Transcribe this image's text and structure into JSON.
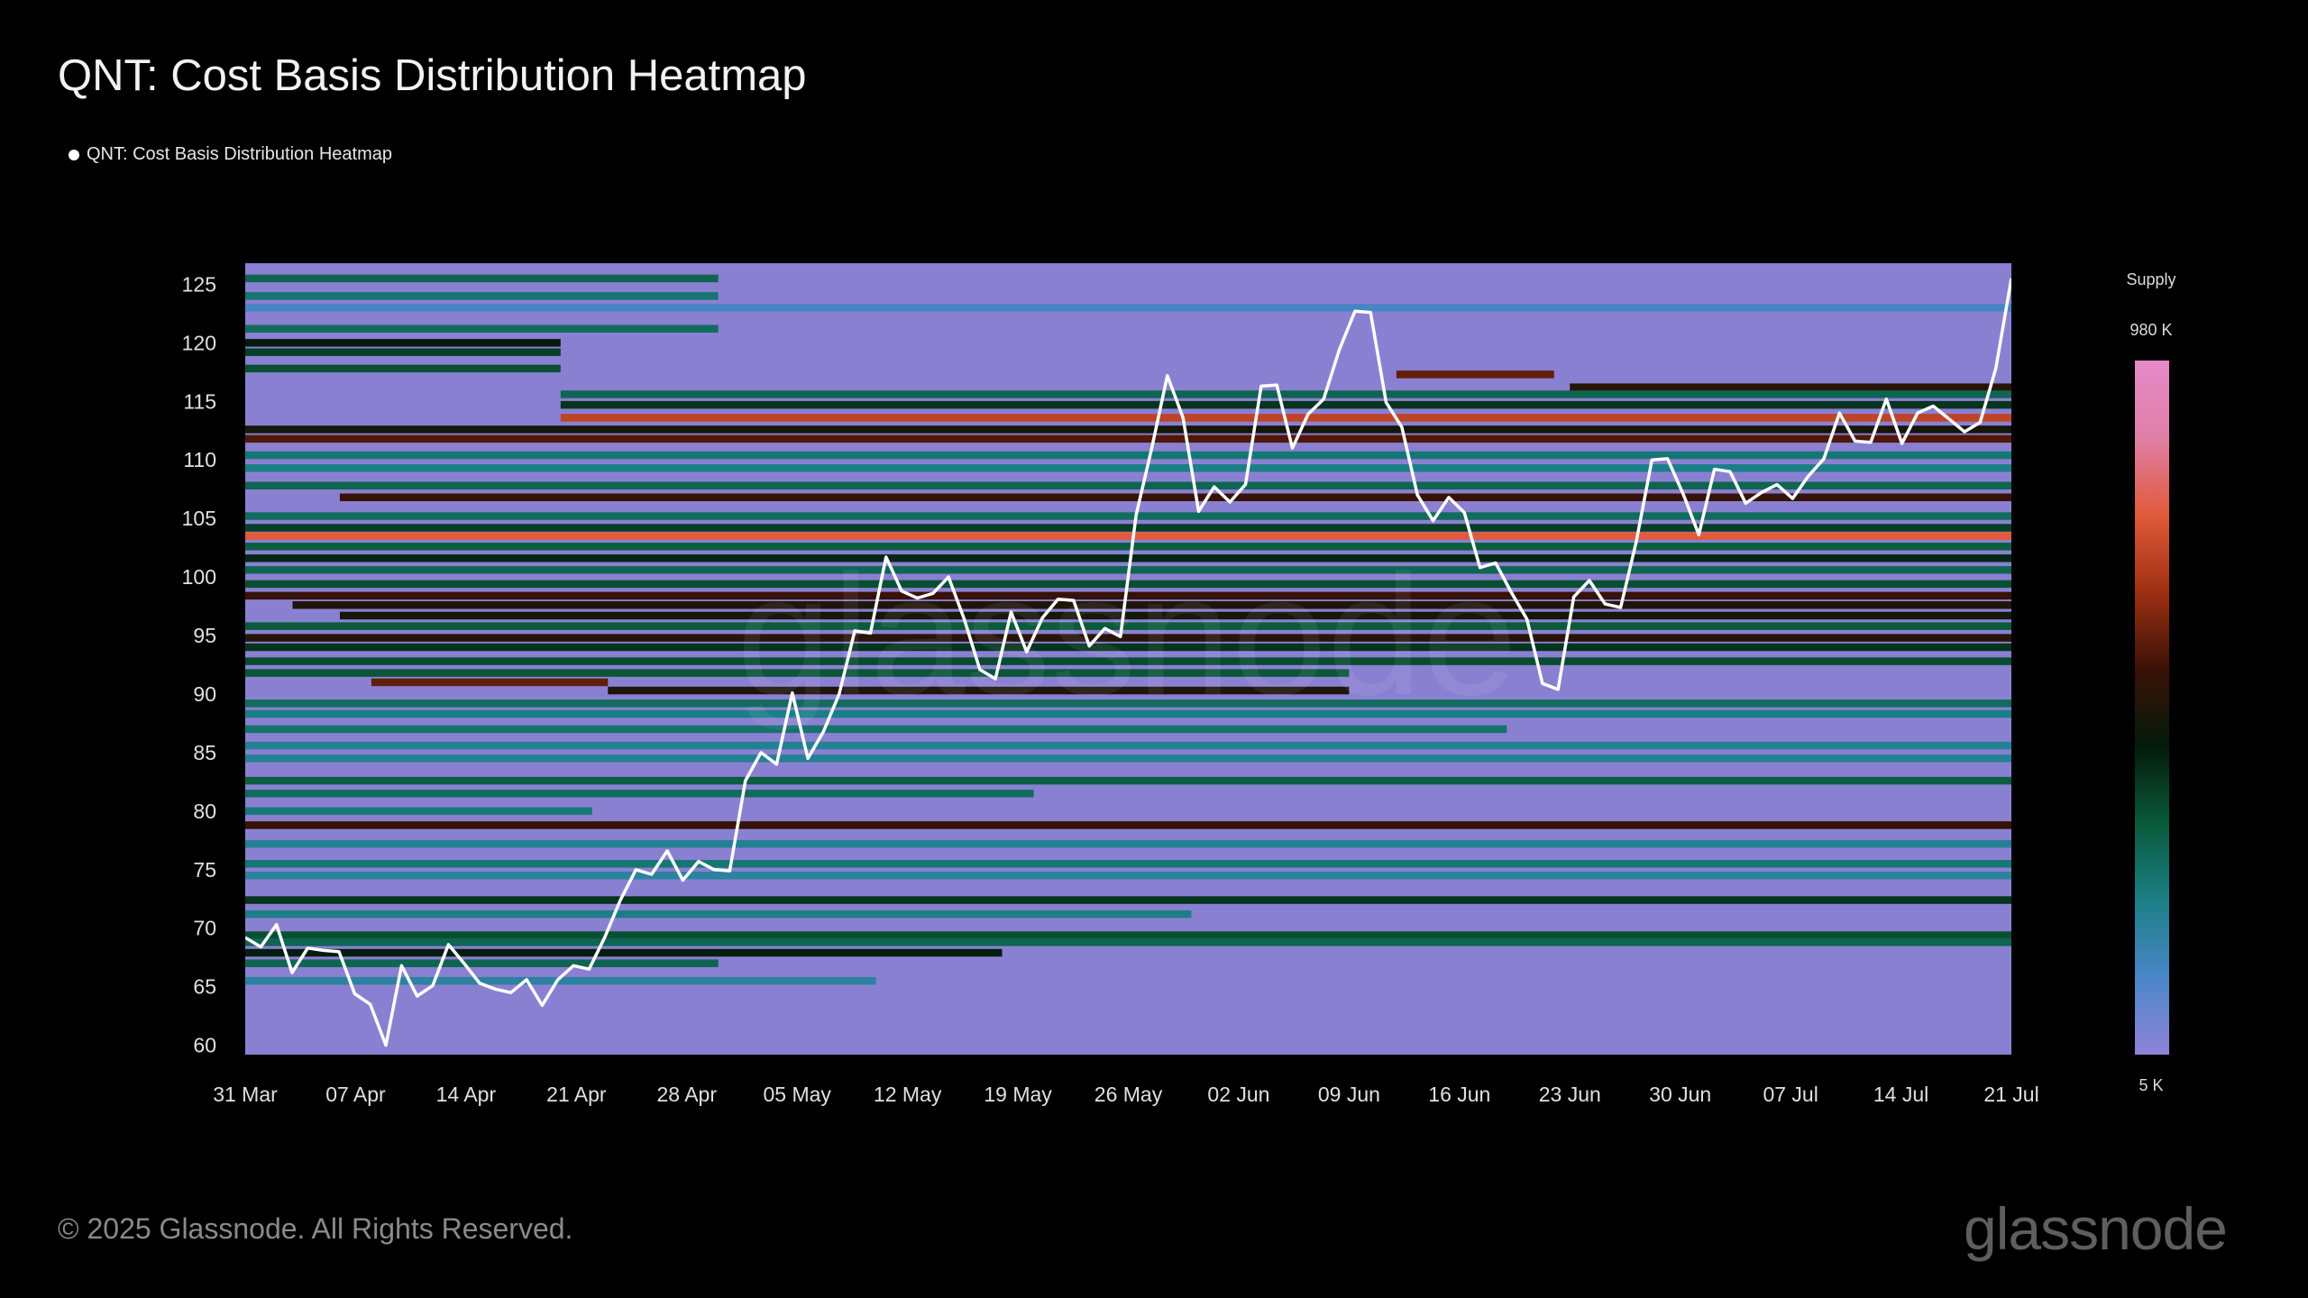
{
  "header": {
    "title": "QNT: Cost Basis Distribution Heatmap",
    "legend_label": "QNT: Cost Basis Distribution Heatmap"
  },
  "footer": {
    "copyright": "© 2025 Glassnode. All Rights Reserved.",
    "brand": "glassnode",
    "watermark": "glassnode"
  },
  "colorbar": {
    "title": "Supply",
    "max_label": "980 K",
    "min_label": "5 K",
    "stops": [
      "#8f84d8",
      "#4a86c8",
      "#1a7f86",
      "#0a5a3a",
      "#031a0c",
      "#3a1206",
      "#9e2f12",
      "#e05a3a",
      "#e07fa6",
      "#e48ac8"
    ]
  },
  "colors": {
    "background": "#000000",
    "base_cell": "#8a80d2",
    "price_line": "#ffffff"
  },
  "chart_data": {
    "type": "heatmap",
    "title": "QNT: Cost Basis Distribution Heatmap",
    "xlabel": "",
    "ylabel": "",
    "x_range_days": [
      0,
      112
    ],
    "ylim": [
      59.2,
      126.8
    ],
    "x_ticks": [
      {
        "day": 0,
        "label": "31 Mar"
      },
      {
        "day": 7,
        "label": "07 Apr"
      },
      {
        "day": 14,
        "label": "14 Apr"
      },
      {
        "day": 21,
        "label": "21 Apr"
      },
      {
        "day": 28,
        "label": "28 Apr"
      },
      {
        "day": 35,
        "label": "05 May"
      },
      {
        "day": 42,
        "label": "12 May"
      },
      {
        "day": 49,
        "label": "19 May"
      },
      {
        "day": 56,
        "label": "26 May"
      },
      {
        "day": 63,
        "label": "02 Jun"
      },
      {
        "day": 70,
        "label": "09 Jun"
      },
      {
        "day": 77,
        "label": "16 Jun"
      },
      {
        "day": 84,
        "label": "23 Jun"
      },
      {
        "day": 91,
        "label": "30 Jun"
      },
      {
        "day": 98,
        "label": "07 Jul"
      },
      {
        "day": 105,
        "label": "14 Jul"
      },
      {
        "day": 112,
        "label": "21 Jul"
      }
    ],
    "y_ticks": [
      60,
      65,
      70,
      75,
      80,
      85,
      90,
      95,
      100,
      105,
      110,
      115,
      120,
      125
    ],
    "price_series": {
      "name": "QNT price",
      "values": [
        69.2,
        68.4,
        70.3,
        66.2,
        68.3,
        68.1,
        68.0,
        64.4,
        63.5,
        60.0,
        66.8,
        64.2,
        65.1,
        68.6,
        67.0,
        65.3,
        64.8,
        64.5,
        65.6,
        63.4,
        65.6,
        66.8,
        66.5,
        69.2,
        72.4,
        75.0,
        74.6,
        76.6,
        74.1,
        75.7,
        75.0,
        74.9,
        82.6,
        85.0,
        84.0,
        90.1,
        84.5,
        86.8,
        90.0,
        95.4,
        95.2,
        101.7,
        98.8,
        98.2,
        98.6,
        100.0,
        96.4,
        92.1,
        91.3,
        97.0,
        93.6,
        96.5,
        98.1,
        98.0,
        94.1,
        95.6,
        94.9,
        105.3,
        111.0,
        117.2,
        113.6,
        105.6,
        107.7,
        106.4,
        107.9,
        116.3,
        116.4,
        111.0,
        113.9,
        115.2,
        119.4,
        122.7,
        122.6,
        114.9,
        112.8,
        107.0,
        104.8,
        106.8,
        105.5,
        100.8,
        101.2,
        98.7,
        96.4,
        90.9,
        90.4,
        98.3,
        99.7,
        97.7,
        97.4,
        103.0,
        110.0,
        110.1,
        107.1,
        103.6,
        109.2,
        109.0,
        106.3,
        107.2,
        107.9,
        106.7,
        108.6,
        110.1,
        114.0,
        111.6,
        111.5,
        115.2,
        111.4,
        114.0,
        114.6,
        113.5,
        112.4,
        113.2,
        117.8,
        125.5
      ]
    },
    "heat_bands": [
      {
        "price": 125.5,
        "x0": 0,
        "x1": 30,
        "level": 0.3
      },
      {
        "price": 124.0,
        "x0": 0,
        "x1": 30,
        "level": 0.25
      },
      {
        "price": 123.0,
        "x0": 0,
        "x1": 112,
        "level": 0.12
      },
      {
        "price": 121.2,
        "x0": 0,
        "x1": 30,
        "level": 0.28
      },
      {
        "price": 120.0,
        "x0": 0,
        "x1": 20,
        "level": 0.45
      },
      {
        "price": 119.2,
        "x0": 0,
        "x1": 20,
        "level": 0.38
      },
      {
        "price": 117.8,
        "x0": 0,
        "x1": 20,
        "level": 0.35
      },
      {
        "price": 117.3,
        "x0": 73,
        "x1": 83,
        "level": 0.6
      },
      {
        "price": 116.2,
        "x0": 84,
        "x1": 112,
        "level": 0.52
      },
      {
        "price": 115.6,
        "x0": 20,
        "x1": 112,
        "level": 0.3
      },
      {
        "price": 114.7,
        "x0": 20,
        "x1": 112,
        "level": 0.4
      },
      {
        "price": 113.6,
        "x0": 20,
        "x1": 112,
        "level": 0.72
      },
      {
        "price": 112.6,
        "x0": 0,
        "x1": 112,
        "level": 0.48
      },
      {
        "price": 111.8,
        "x0": 0,
        "x1": 112,
        "level": 0.58
      },
      {
        "price": 110.4,
        "x0": 0,
        "x1": 112,
        "level": 0.25
      },
      {
        "price": 109.3,
        "x0": 0,
        "x1": 112,
        "level": 0.22
      },
      {
        "price": 107.8,
        "x0": 0,
        "x1": 112,
        "level": 0.3
      },
      {
        "price": 106.8,
        "x0": 6,
        "x1": 112,
        "level": 0.55
      },
      {
        "price": 105.2,
        "x0": 0,
        "x1": 112,
        "level": 0.28
      },
      {
        "price": 104.2,
        "x0": 0,
        "x1": 112,
        "level": 0.38
      },
      {
        "price": 103.5,
        "x0": 0,
        "x1": 112,
        "level": 0.78
      },
      {
        "price": 102.6,
        "x0": 0,
        "x1": 112,
        "level": 0.32
      },
      {
        "price": 101.6,
        "x0": 0,
        "x1": 112,
        "level": 0.42
      },
      {
        "price": 100.6,
        "x0": 0,
        "x1": 112,
        "level": 0.3
      },
      {
        "price": 99.4,
        "x0": 0,
        "x1": 112,
        "level": 0.35
      },
      {
        "price": 98.4,
        "x0": 0,
        "x1": 112,
        "level": 0.55
      },
      {
        "price": 97.6,
        "x0": 3,
        "x1": 112,
        "level": 0.5
      },
      {
        "price": 96.7,
        "x0": 6,
        "x1": 112,
        "level": 0.48
      },
      {
        "price": 95.8,
        "x0": 0,
        "x1": 112,
        "level": 0.33
      },
      {
        "price": 94.8,
        "x0": 0,
        "x1": 112,
        "level": 0.52
      },
      {
        "price": 94.0,
        "x0": 0,
        "x1": 112,
        "level": 0.4
      },
      {
        "price": 92.8,
        "x0": 0,
        "x1": 112,
        "level": 0.36
      },
      {
        "price": 91.8,
        "x0": 0,
        "x1": 70,
        "level": 0.34
      },
      {
        "price": 91.0,
        "x0": 8,
        "x1": 23,
        "level": 0.6
      },
      {
        "price": 90.3,
        "x0": 23,
        "x1": 70,
        "level": 0.5
      },
      {
        "price": 89.2,
        "x0": 0,
        "x1": 112,
        "level": 0.28
      },
      {
        "price": 88.3,
        "x0": 0,
        "x1": 112,
        "level": 0.22
      },
      {
        "price": 87.0,
        "x0": 0,
        "x1": 80,
        "level": 0.26
      },
      {
        "price": 85.6,
        "x0": 0,
        "x1": 112,
        "level": 0.2
      },
      {
        "price": 84.5,
        "x0": 0,
        "x1": 112,
        "level": 0.2
      },
      {
        "price": 82.6,
        "x0": 0,
        "x1": 112,
        "level": 0.32
      },
      {
        "price": 81.5,
        "x0": 0,
        "x1": 50,
        "level": 0.28
      },
      {
        "price": 80.0,
        "x0": 0,
        "x1": 22,
        "level": 0.24
      },
      {
        "price": 78.8,
        "x0": 0,
        "x1": 112,
        "level": 0.55
      },
      {
        "price": 77.2,
        "x0": 0,
        "x1": 112,
        "level": 0.2
      },
      {
        "price": 75.5,
        "x0": 0,
        "x1": 112,
        "level": 0.25
      },
      {
        "price": 74.5,
        "x0": 0,
        "x1": 112,
        "level": 0.18
      },
      {
        "price": 72.4,
        "x0": 0,
        "x1": 112,
        "level": 0.4
      },
      {
        "price": 71.2,
        "x0": 0,
        "x1": 60,
        "level": 0.22
      },
      {
        "price": 69.4,
        "x0": 0,
        "x1": 112,
        "level": 0.35
      },
      {
        "price": 68.8,
        "x0": 0,
        "x1": 112,
        "level": 0.3
      },
      {
        "price": 67.9,
        "x0": 0,
        "x1": 48,
        "level": 0.44
      },
      {
        "price": 67.0,
        "x0": 0,
        "x1": 30,
        "level": 0.3
      },
      {
        "price": 65.5,
        "x0": 0,
        "x1": 40,
        "level": 0.18
      }
    ]
  }
}
